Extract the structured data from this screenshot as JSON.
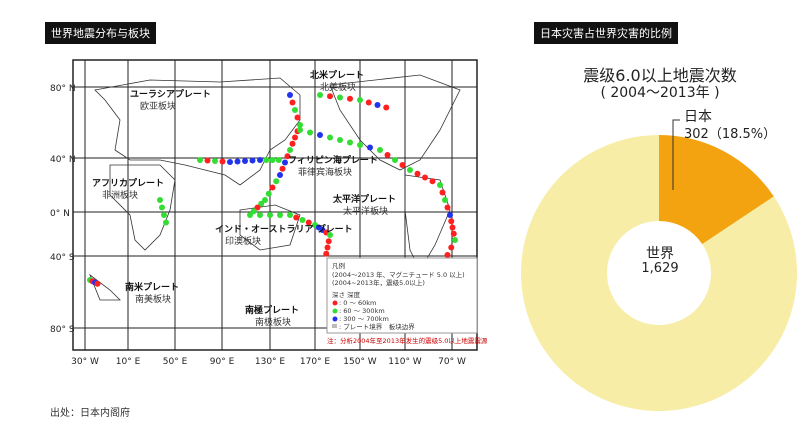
{
  "map_panel": {
    "title": "世界地震分布与板块",
    "lat_labels": [
      "80° N",
      "40° N",
      "0° N",
      "40° S",
      "80° S"
    ],
    "lon_labels": [
      "30° W",
      "10° E",
      "50° E",
      "90° E",
      "130° E",
      "170° E",
      "150° W",
      "110° W",
      "70° W"
    ],
    "plates": [
      {
        "jp": "ユーラシアプレート",
        "cn": "欧亚板块"
      },
      {
        "jp": "北米プレート",
        "cn": "北美板块"
      },
      {
        "jp": "フィリピン海プレート",
        "cn": "菲律宾海板块"
      },
      {
        "jp": "アフリカプレート",
        "cn": "非洲板块"
      },
      {
        "jp": "太平洋プレート",
        "cn": "太平洋板块"
      },
      {
        "jp": "インド・オーストラリア プレート",
        "cn": "印澳板块"
      },
      {
        "jp": "南米プレート",
        "cn": "南美板块"
      },
      {
        "jp": "南極プレート",
        "cn": "南极板块"
      }
    ],
    "legend": {
      "title": "凡例",
      "line1": "(2004～2013 年、マグニチュード 5.0 以上)",
      "line2": "(2004~2013年，震级5.0以上)",
      "depth_label": "深さ 深度",
      "items": [
        {
          "label": ": 0 ～ 60km",
          "color": "#ff2020"
        },
        {
          "label": ": 60 ～ 300km",
          "color": "#33dd33"
        },
        {
          "label": ": 300 ～ 700km",
          "color": "#2233ee"
        }
      ],
      "boundary": ": プレート境界　板块边界",
      "note": "注：分析2004年至2013年发生的震级5.0以上地震震源"
    }
  },
  "chart_panel": {
    "title": "日本灾害占世界灾害的比例"
  },
  "chart_data": {
    "type": "pie",
    "title": "震级6.0以上地震次数",
    "subtitle": "( 2004～2013年 )",
    "slices": [
      {
        "name": "日本",
        "value": 302,
        "percent": "18.5%",
        "label": "302（18.5%）",
        "color": "#f2a30f"
      },
      {
        "name": "世界",
        "value": 1629,
        "label": "1,629",
        "color": "#f7eda6"
      }
    ]
  },
  "source": "出处：日本内阁府"
}
